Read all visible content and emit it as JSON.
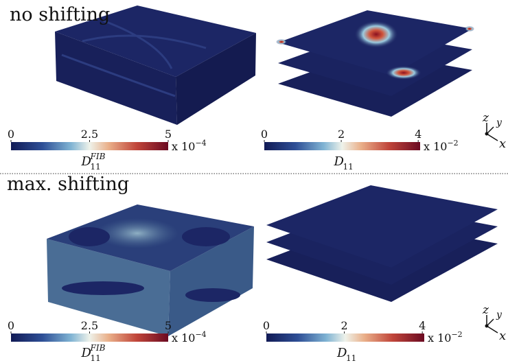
{
  "rows": [
    {
      "title": "no shifting",
      "colorbars": [
        {
          "lim": [
            0,
            5
          ],
          "ticks": [
            0,
            2.5,
            5
          ],
          "scale": "x 10",
          "scale_exponent": "−4",
          "label": "D",
          "label_sub": "11",
          "label_sup": "FIB"
        },
        {
          "lim": [
            0,
            4.05
          ],
          "ticks": [
            0,
            2,
            4
          ],
          "scale": "x 10",
          "scale_exponent": "−2",
          "label": "D",
          "label_sub": "11"
        }
      ]
    },
    {
      "title": "max. shifting",
      "colorbars": [
        {
          "lim": [
            0,
            5
          ],
          "ticks": [
            0,
            2.5,
            5
          ],
          "scale": "x 10",
          "scale_exponent": "−4",
          "label": "D",
          "label_sub": "11",
          "label_sup": "FIB"
        },
        {
          "lim": [
            0,
            4.05
          ],
          "ticks": [
            0,
            2,
            4
          ],
          "scale": "x 10",
          "scale_exponent": "−2",
          "label": "D",
          "label_sub": "11"
        }
      ]
    }
  ],
  "axes_triad": {
    "z": "z",
    "y": "y",
    "x": "x"
  }
}
